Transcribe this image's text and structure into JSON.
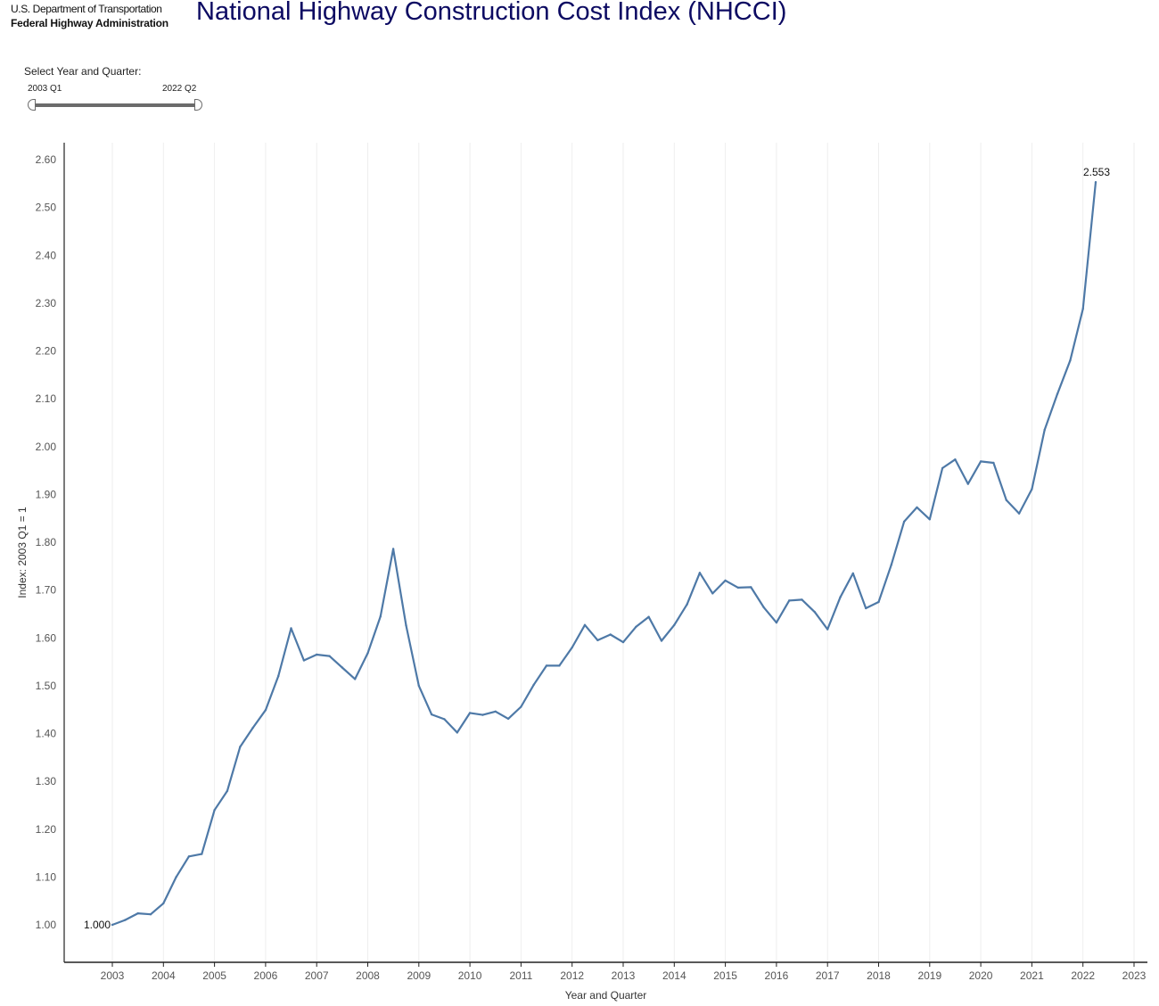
{
  "logo": {
    "department": "U.S. Department of Transportation",
    "agency": "Federal Highway Administration"
  },
  "title": "National Highway Construction Cost Index (NHCCI)",
  "filter": {
    "label": "Select Year and Quarter:",
    "range_start": "2003 Q1",
    "range_end": "2022 Q2"
  },
  "colors": {
    "line": "#4e79a7",
    "title": "#0c0a62",
    "gridline": "#eeeeee",
    "axis": "#222222"
  },
  "chart_data": {
    "type": "line",
    "xlabel": "Year and Quarter",
    "ylabel": "Index: 2003 Q1 = 1",
    "xlim": [
      2002.3,
      2023.3
    ],
    "ylim": [
      0.92,
      2.64
    ],
    "xticks": [
      2003,
      2004,
      2005,
      2006,
      2007,
      2008,
      2009,
      2010,
      2011,
      2012,
      2013,
      2014,
      2015,
      2016,
      2017,
      2018,
      2019,
      2020,
      2021,
      2022,
      2023
    ],
    "yticks": [
      1.0,
      1.1,
      1.2,
      1.3,
      1.4,
      1.5,
      1.6,
      1.7,
      1.8,
      1.9,
      2.0,
      2.1,
      2.2,
      2.3,
      2.4,
      2.5,
      2.6
    ],
    "grid": "vertical",
    "series": [
      {
        "start_year": 2003,
        "start_quarter": 1,
        "values": [
          1.0,
          1.01,
          1.024,
          1.022,
          1.045,
          1.1,
          1.143,
          1.148,
          1.24,
          1.28,
          1.372,
          1.412,
          1.449,
          1.52,
          1.62,
          1.553,
          1.565,
          1.562,
          1.538,
          1.514,
          1.568,
          1.645,
          1.786,
          1.626,
          1.5,
          1.44,
          1.43,
          1.402,
          1.443,
          1.439,
          1.446,
          1.431,
          1.456,
          1.502,
          1.542,
          1.542,
          1.58,
          1.627,
          1.595,
          1.607,
          1.591,
          1.623,
          1.644,
          1.594,
          1.627,
          1.67,
          1.736,
          1.693,
          1.72,
          1.705,
          1.706,
          1.664,
          1.632,
          1.678,
          1.68,
          1.654,
          1.618,
          1.685,
          1.735,
          1.662,
          1.675,
          1.753,
          1.843,
          1.873,
          1.848,
          1.955,
          1.973,
          1.922,
          1.969,
          1.966,
          1.888,
          1.86,
          1.911,
          2.035,
          2.11,
          2.18,
          2.288,
          2.553
        ]
      }
    ],
    "annotations": [
      {
        "label": "1.000",
        "x": 2003.0,
        "y": 1.0,
        "anchor": "left"
      },
      {
        "label": "2.553",
        "x": 2022.25,
        "y": 2.553,
        "anchor": "above"
      }
    ]
  }
}
